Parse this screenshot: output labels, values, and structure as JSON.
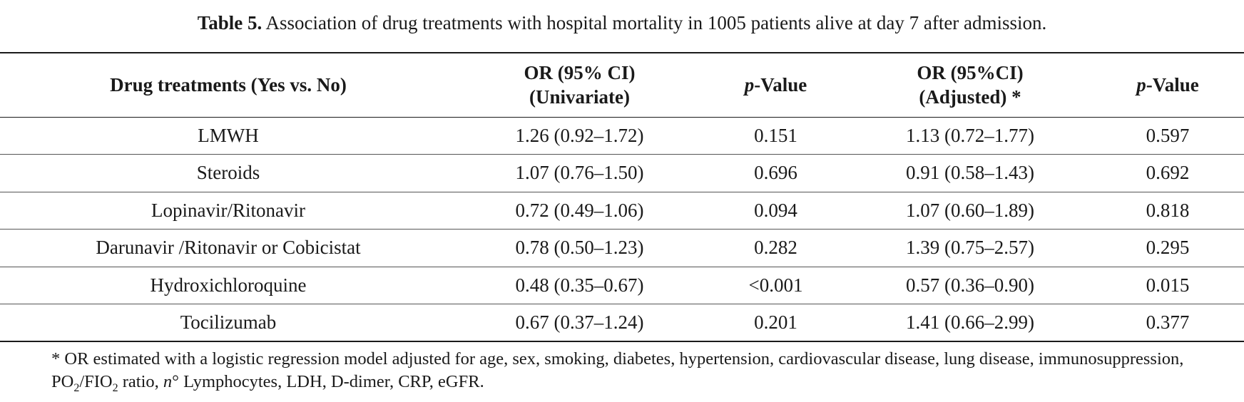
{
  "caption": {
    "label": "Table 5.",
    "text": "Association of drug treatments with hospital mortality in 1005 patients alive at day 7 after admission."
  },
  "table": {
    "headers": {
      "drug": "Drug treatments (Yes vs. No)",
      "or_uni_line1": "OR (95% CI)",
      "or_uni_line2": "(Univariate)",
      "p_italic": "p",
      "p_suffix": "-Value",
      "or_adj_line1": "OR (95%CI)",
      "or_adj_line2": "(Adjusted) *"
    },
    "rows": [
      {
        "drug": "LMWH",
        "or_uni": "1.26 (0.92–1.72)",
        "p_uni": "0.151",
        "or_adj": "1.13 (0.72–1.77)",
        "p_adj": "0.597"
      },
      {
        "drug": "Steroids",
        "or_uni": "1.07 (0.76–1.50)",
        "p_uni": "0.696",
        "or_adj": "0.91 (0.58–1.43)",
        "p_adj": "0.692"
      },
      {
        "drug": "Lopinavir/Ritonavir",
        "or_uni": "0.72 (0.49–1.06)",
        "p_uni": "0.094",
        "or_adj": "1.07 (0.60–1.89)",
        "p_adj": "0.818"
      },
      {
        "drug": "Darunavir /Ritonavir or Cobicistat",
        "or_uni": "0.78 (0.50–1.23)",
        "p_uni": "0.282",
        "or_adj": "1.39 (0.75–2.57)",
        "p_adj": "0.295"
      },
      {
        "drug": "Hydroxichloroquine",
        "or_uni": "0.48 (0.35–0.67)",
        "p_uni": "<0.001",
        "or_adj": "0.57 (0.36–0.90)",
        "p_adj": "0.015"
      },
      {
        "drug": "Tocilizumab",
        "or_uni": "0.67 (0.37–1.24)",
        "p_uni": "0.201",
        "or_adj": "1.41 (0.66–2.99)",
        "p_adj": "0.377"
      }
    ]
  },
  "footnote": {
    "part1": "* OR estimated with a logistic regression model adjusted for age, sex, smoking, diabetes, hypertension, cardiovascular disease, lung disease, immunosuppression, PO",
    "sub1": "2",
    "part2": "/FIO",
    "sub2": "2",
    "part3": " ratio, ",
    "n_italic": "n",
    "part4": "° Lymphocytes, LDH, D-dimer, CRP, eGFR."
  }
}
